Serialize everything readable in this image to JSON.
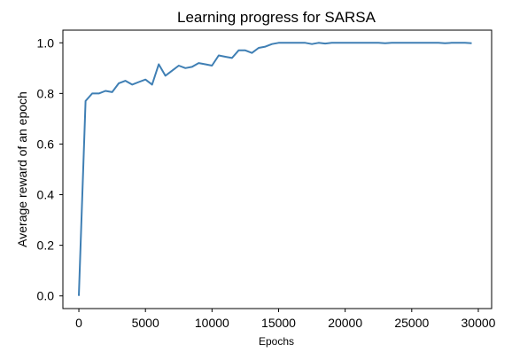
{
  "chart_data": {
    "type": "line",
    "title": "Learning progress for SARSA",
    "xlabel": "Epochs",
    "ylabel": "Average reward of an epoch",
    "xlim": [
      -1200,
      31000
    ],
    "ylim": [
      -0.05,
      1.05
    ],
    "xticks": [
      0,
      5000,
      10000,
      15000,
      20000,
      25000,
      30000
    ],
    "yticks": [
      0.0,
      0.2,
      0.4,
      0.6,
      0.8,
      1.0
    ],
    "ytick_labels": [
      "0.0",
      "0.2",
      "0.4",
      "0.6",
      "0.8",
      "1.0"
    ],
    "grid": false,
    "line_color": "#3f7fb4",
    "series": [
      {
        "x": [
          0,
          500,
          1000,
          1500,
          2000,
          2500,
          3000,
          3500,
          4000,
          4500,
          5000,
          5500,
          6000,
          6500,
          7000,
          7500,
          8000,
          8500,
          9000,
          9500,
          10000,
          10500,
          11000,
          11500,
          12000,
          12500,
          13000,
          13500,
          14000,
          14500,
          15000,
          15500,
          16000,
          16500,
          17000,
          17500,
          18000,
          18500,
          19000,
          19500,
          20000,
          20500,
          21000,
          21500,
          22000,
          22500,
          23000,
          23500,
          24000,
          24500,
          25000,
          25500,
          26000,
          26500,
          27000,
          27500,
          28000,
          28500,
          29000,
          29500
        ],
        "y": [
          0.0,
          0.77,
          0.8,
          0.8,
          0.81,
          0.805,
          0.84,
          0.85,
          0.835,
          0.845,
          0.855,
          0.835,
          0.915,
          0.87,
          0.89,
          0.91,
          0.9,
          0.905,
          0.92,
          0.915,
          0.91,
          0.95,
          0.945,
          0.94,
          0.97,
          0.97,
          0.96,
          0.98,
          0.985,
          0.995,
          1.0,
          1.0,
          1.0,
          1.0,
          1.0,
          0.995,
          1.0,
          0.997,
          1.0,
          1.0,
          1.0,
          1.0,
          1.0,
          1.0,
          1.0,
          1.0,
          0.998,
          1.0,
          1.0,
          1.0,
          1.0,
          1.0,
          1.0,
          1.0,
          1.0,
          0.998,
          1.0,
          1.0,
          1.0,
          0.998
        ]
      }
    ]
  }
}
